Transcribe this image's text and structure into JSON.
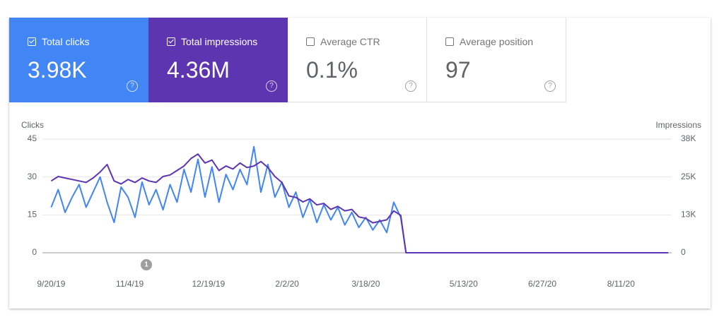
{
  "cards": [
    {
      "label": "Total clicks",
      "value": "3.98K",
      "checked": true,
      "color": "#4285f4"
    },
    {
      "label": "Total impressions",
      "value": "4.36M",
      "checked": true,
      "color": "#5e35b1"
    },
    {
      "label": "Average CTR",
      "value": "0.1%",
      "checked": false
    },
    {
      "label": "Average position",
      "value": "97",
      "checked": false
    }
  ],
  "chart_data": {
    "type": "line",
    "y_label": "Clicks",
    "y2_label": "Impressions",
    "x": [
      "9/20/19",
      "9/24/19",
      "9/28/19",
      "10/2/19",
      "10/6/19",
      "10/10/19",
      "10/14/19",
      "10/18/19",
      "10/22/19",
      "10/26/19",
      "10/30/19",
      "11/3/19",
      "11/7/19",
      "11/11/19",
      "11/15/19",
      "11/19/19",
      "11/23/19",
      "11/27/19",
      "12/1/19",
      "12/5/19",
      "12/9/19",
      "12/13/19",
      "12/17/19",
      "12/21/19",
      "12/25/19",
      "12/29/19",
      "1/2/20",
      "1/6/20",
      "1/10/20",
      "1/14/20",
      "1/18/20",
      "1/22/20",
      "1/26/20",
      "1/30/20",
      "2/3/20",
      "2/7/20",
      "2/11/20",
      "2/15/20",
      "2/19/20",
      "2/23/20",
      "2/27/20",
      "3/2/20",
      "3/6/20",
      "3/10/20",
      "3/14/20",
      "3/18/20",
      "3/22/20",
      "3/26/20",
      "3/30/20",
      "4/3/20",
      "4/7/20",
      "4/10/20",
      "9/7/20"
    ],
    "series": [
      {
        "name": "Clicks",
        "color": "#4285f4",
        "axis": "y",
        "values": [
          18,
          25,
          16,
          22,
          27,
          18,
          24,
          30,
          20,
          12,
          26,
          22,
          14,
          28,
          19,
          25,
          17,
          27,
          20,
          33,
          24,
          37,
          22,
          34,
          20,
          31,
          25,
          33,
          27,
          42,
          24,
          35,
          22,
          28,
          18,
          24,
          14,
          21,
          12,
          19,
          13,
          18,
          11,
          16,
          10,
          14,
          9,
          13,
          8,
          20,
          14,
          0,
          0
        ]
      },
      {
        "name": "Impressions",
        "color": "#5e35b1",
        "axis": "y2",
        "values": [
          24000,
          25500,
          25000,
          24500,
          24000,
          23500,
          25000,
          27000,
          29500,
          24000,
          23000,
          24500,
          23500,
          25000,
          24000,
          23500,
          25500,
          26000,
          27500,
          29000,
          31500,
          33000,
          30000,
          31000,
          27500,
          29000,
          28000,
          30000,
          28500,
          29000,
          30500,
          28500,
          25500,
          23500,
          19000,
          18500,
          17000,
          18000,
          16000,
          16500,
          14500,
          15500,
          14000,
          14500,
          12000,
          11500,
          10000,
          10500,
          11000,
          14000,
          12500,
          0,
          0
        ]
      }
    ],
    "xlim": [
      "9/15/19",
      "9/9/20"
    ],
    "xticks": [
      "9/20/19",
      "11/4/19",
      "12/19/19",
      "2/2/20",
      "3/18/20",
      "5/13/20",
      "6/27/20",
      "8/11/20"
    ],
    "ylim": [
      0,
      45
    ],
    "yticks": [
      0,
      15,
      30,
      45
    ],
    "y2lim": [
      0,
      38000
    ],
    "y2ticks": [
      0,
      {
        "value": 12667,
        "label": "13K"
      },
      {
        "value": 25333,
        "label": "25K"
      },
      {
        "value": 38000,
        "label": "38K"
      }
    ],
    "grid": true,
    "annotations": [
      "1"
    ]
  }
}
